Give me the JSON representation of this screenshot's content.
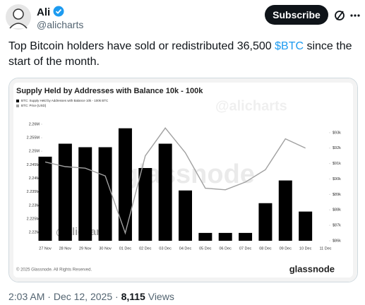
{
  "header": {
    "name": "Ali",
    "handle": "@alicharts",
    "button": "Subscribe"
  },
  "tweet": {
    "text_before": "Top Bitcoin holders have sold or redistributed 36,500 ",
    "cashtag": "$BTC",
    "text_after": " since the start of the month."
  },
  "footer": {
    "time": "2:03 AM",
    "separator": "·",
    "date": "Dec 12, 2025",
    "views": "8,115",
    "views_label": "Views"
  },
  "chart_data": {
    "type": "bar_line",
    "title": "Supply Held by Addresses with Balance 10k - 100k",
    "watermarks": [
      "@alicharts",
      "glassnode"
    ],
    "copyright": "© 2025 Glassnode. All Rights Reserved.",
    "logo": "glassnode",
    "categories": [
      "27 Nov",
      "28 Nov",
      "29 Nov",
      "30 Nov",
      "01 Dec",
      "02 Dec",
      "03 Dec",
      "04 Dec",
      "05 Dec",
      "06 Dec",
      "07 Dec",
      "08 Dec",
      "09 Dec",
      "10 Dec",
      "11 Dec"
    ],
    "series": [
      {
        "name": "BTC: Supply Held by Addresses with Balance 10k - 100k BTC",
        "color": "#000000",
        "kind": "bar",
        "values": [
          2248000,
          2252800,
          2251500,
          2251500,
          2258500,
          2243800,
          2252800,
          2235500,
          2219800,
          2219800,
          2219800,
          2230800,
          2239200,
          2227700,
          null
        ]
      },
      {
        "name": "BTC: Price [USD]",
        "color": "#a0a0a0",
        "kind": "line",
        "axis": "y2",
        "values": [
          91100,
          90800,
          90700,
          90200,
          86500,
          91500,
          93300,
          91700,
          89400,
          89300,
          89800,
          90600,
          92600,
          92000,
          null
        ]
      }
    ],
    "ylim": [
      2216900,
      2262600
    ],
    "yticks": [
      {
        "value": 2220000,
        "label": "2.22M"
      },
      {
        "value": 2225000,
        "label": "2.225M"
      },
      {
        "value": 2230000,
        "label": "2.23M"
      },
      {
        "value": 2235000,
        "label": "2.235M"
      },
      {
        "value": 2240000,
        "label": "2.24M"
      },
      {
        "value": 2245000,
        "label": "2.245M"
      },
      {
        "value": 2250000,
        "label": "2.25M"
      },
      {
        "value": 2255000,
        "label": "2.255M"
      },
      {
        "value": 2260000,
        "label": "2.26M"
      }
    ],
    "y2lim": [
      86000,
      94000
    ],
    "y2ticks": [
      {
        "value": 86000,
        "label": "$86k"
      },
      {
        "value": 87000,
        "label": "$87k"
      },
      {
        "value": 88000,
        "label": "$88k"
      },
      {
        "value": 89000,
        "label": "$89k"
      },
      {
        "value": 90000,
        "label": "$90k"
      },
      {
        "value": 91000,
        "label": "$91k"
      },
      {
        "value": 92000,
        "label": "$92k"
      },
      {
        "value": 93000,
        "label": "$93k"
      }
    ],
    "grid": false
  }
}
